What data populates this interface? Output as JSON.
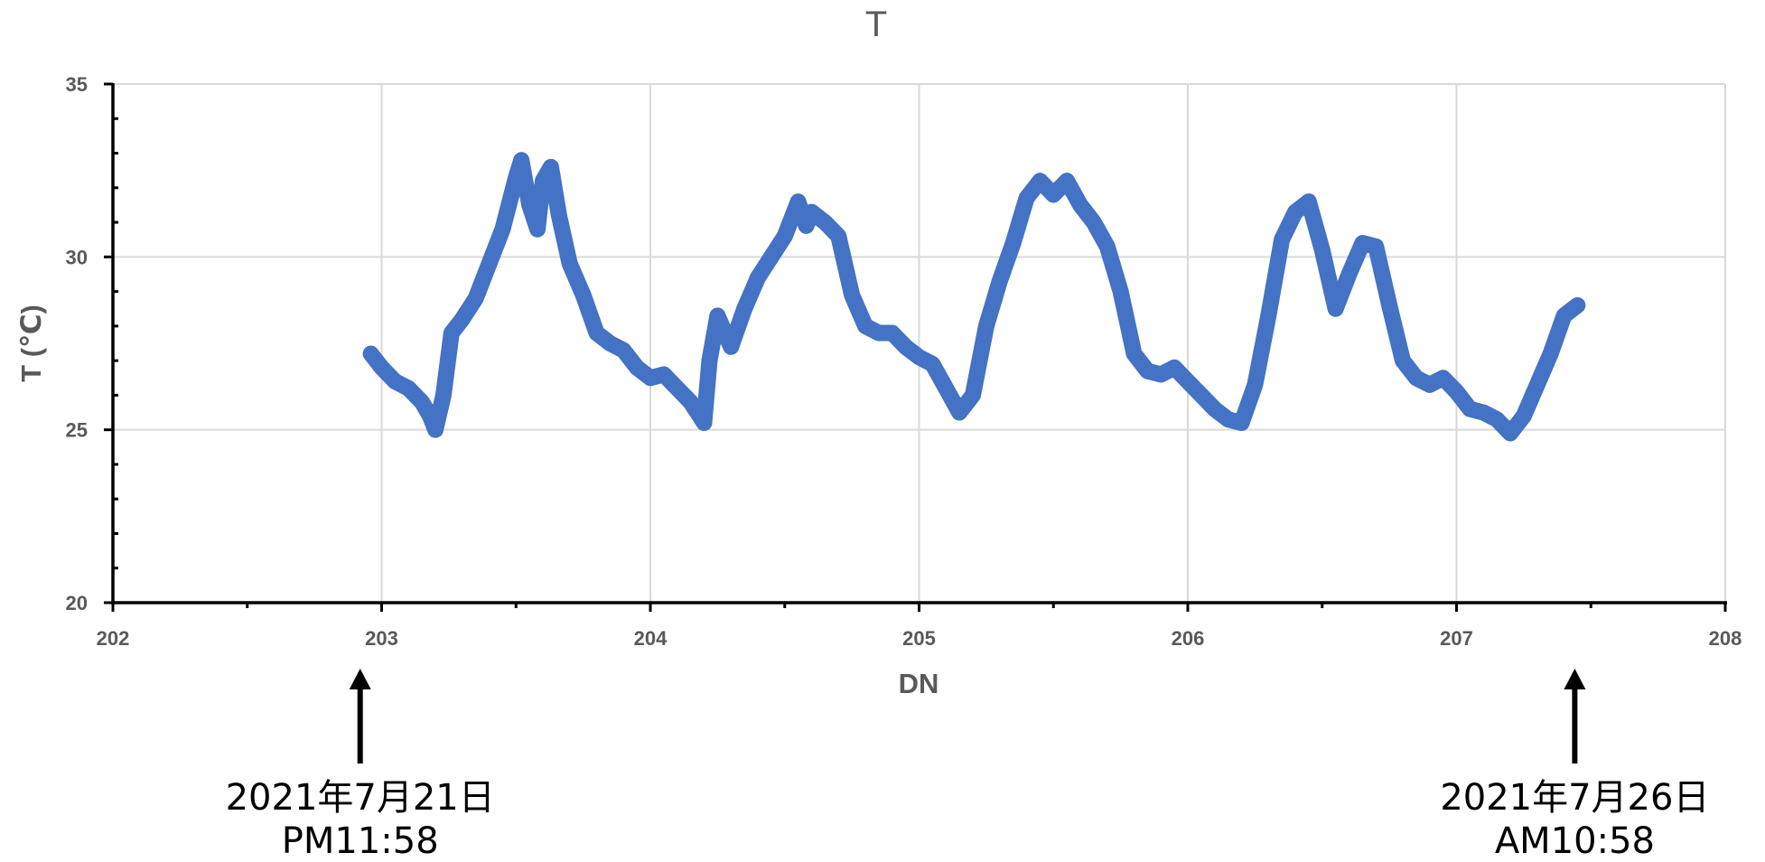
{
  "chart_data": {
    "type": "scatter",
    "title": "T",
    "xlabel": "DN",
    "ylabel": "T (℃)",
    "xlim": [
      202,
      208
    ],
    "ylim": [
      20,
      35
    ],
    "x_ticks": [
      202,
      203,
      204,
      205,
      206,
      207,
      208
    ],
    "y_ticks": [
      20,
      25,
      30,
      35
    ],
    "x_tick_labels": [
      "202",
      "203",
      "204",
      "205",
      "206",
      "207",
      "208"
    ],
    "y_tick_labels": [
      "20",
      "25",
      "30",
      "35"
    ],
    "grid": true,
    "legend": "none",
    "series_color": "#4472C4",
    "series": [
      {
        "x": [
          202.96,
          203.0,
          203.05,
          203.1,
          203.15,
          203.18,
          203.2,
          203.23,
          203.26,
          203.3,
          203.35,
          203.4,
          203.45,
          203.5,
          203.52,
          203.55,
          203.58,
          203.6,
          203.63,
          203.66,
          203.7,
          203.75,
          203.8,
          203.85,
          203.9,
          203.95,
          204.0,
          204.05,
          204.1,
          204.15,
          204.2,
          204.22,
          204.25,
          204.3,
          204.35,
          204.4,
          204.45,
          204.5,
          204.55,
          204.58,
          204.6,
          204.65,
          204.7,
          204.75,
          204.8,
          204.85,
          204.9,
          204.95,
          205.0,
          205.05,
          205.1,
          205.15,
          205.2,
          205.25,
          205.3,
          205.35,
          205.4,
          205.45,
          205.5,
          205.55,
          205.6,
          205.65,
          205.7,
          205.75,
          205.8,
          205.85,
          205.9,
          205.95,
          206.0,
          206.05,
          206.1,
          206.15,
          206.2,
          206.25,
          206.3,
          206.35,
          206.4,
          206.45,
          206.5,
          206.55,
          206.6,
          206.65,
          206.7,
          206.75,
          206.8,
          206.85,
          206.9,
          206.95,
          207.0,
          207.05,
          207.1,
          207.15,
          207.2,
          207.25,
          207.3,
          207.35,
          207.4,
          207.45
        ],
        "y": [
          27.2,
          26.8,
          26.4,
          26.2,
          25.8,
          25.4,
          25.0,
          26.0,
          27.8,
          28.2,
          28.8,
          29.8,
          30.8,
          32.3,
          32.8,
          31.5,
          30.8,
          32.2,
          32.6,
          31.2,
          29.8,
          28.9,
          27.8,
          27.5,
          27.3,
          26.8,
          26.5,
          26.6,
          26.2,
          25.8,
          25.2,
          27.0,
          28.3,
          27.4,
          28.5,
          29.4,
          30.0,
          30.6,
          31.6,
          30.9,
          31.3,
          31.0,
          30.6,
          28.9,
          28.0,
          27.8,
          27.8,
          27.4,
          27.1,
          26.9,
          26.2,
          25.5,
          26.0,
          28.0,
          29.3,
          30.4,
          31.7,
          32.2,
          31.8,
          32.2,
          31.5,
          31.0,
          30.3,
          29.0,
          27.2,
          26.7,
          26.6,
          26.8,
          26.4,
          26.0,
          25.6,
          25.3,
          25.2,
          26.3,
          28.3,
          30.5,
          31.3,
          31.6,
          30.2,
          28.5,
          29.5,
          30.4,
          30.3,
          28.6,
          27.0,
          26.5,
          26.3,
          26.5,
          26.1,
          25.6,
          25.5,
          25.3,
          24.9,
          25.4,
          26.3,
          27.2,
          28.3,
          28.6
        ]
      }
    ],
    "annotations": [
      {
        "x": 202.92,
        "line1": "2021年7月21日",
        "line2": "PM11:58"
      },
      {
        "x": 207.44,
        "line1": "2021年7月26日",
        "line2": "AM10:58"
      }
    ]
  }
}
